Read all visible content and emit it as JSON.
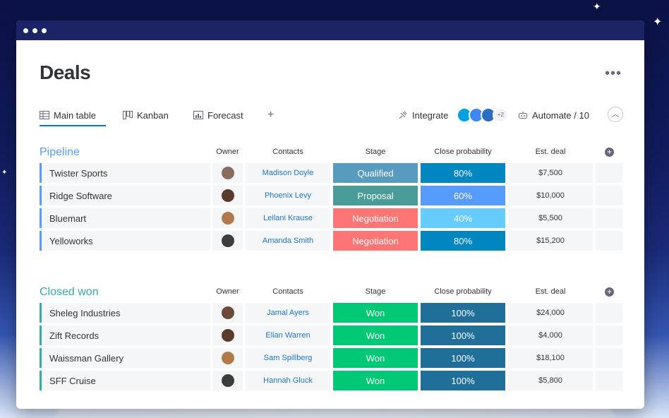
{
  "colors": {
    "accent": "#0073ea",
    "pipeline": "#579bfc",
    "closed": "#37a9a4"
  },
  "title": "Deals",
  "tabs": [
    {
      "label": "Main table",
      "icon": "table-icon"
    },
    {
      "label": "Kanban",
      "icon": "kanban-icon"
    },
    {
      "label": "Forecast",
      "icon": "chart-icon"
    }
  ],
  "integrate_label": "Integrate",
  "integrate_more": "+2",
  "automate_label": "Automate / 10",
  "columns": {
    "owner": "Owner",
    "contacts": "Contacts",
    "stage": "Stage",
    "prob": "Close probability",
    "deal": "Est. deal"
  },
  "groups": [
    {
      "title": "Pipeline",
      "color": "#579bfc",
      "rows": [
        {
          "name": "Twister Sports",
          "contact": "Madison Doyle",
          "stage": "Qualified",
          "stage_color": "#579bbe",
          "prob": "80%",
          "prob_color": "#0086c0",
          "deal": "$7,500",
          "avatar_color": "#8a6d5c"
        },
        {
          "name": "Ridge Software",
          "contact": "Phoenix Levy",
          "stage": "Proposal",
          "stage_color": "#4a9c99",
          "prob": "60%",
          "prob_color": "#579bfc",
          "deal": "$10,000",
          "avatar_color": "#5a3b2e"
        },
        {
          "name": "Bluemart",
          "contact": "Leilani Krause",
          "stage": "Negotiation",
          "stage_color": "#ff7575",
          "prob": "40%",
          "prob_color": "#66ccff",
          "deal": "$5,500",
          "avatar_color": "#b07a4a"
        },
        {
          "name": "Yelloworks",
          "contact": "Amanda Smith",
          "stage": "Negotiation",
          "stage_color": "#ff7575",
          "prob": "80%",
          "prob_color": "#0086c0",
          "deal": "$15,200",
          "avatar_color": "#3c3c3c"
        }
      ]
    },
    {
      "title": "Closed won",
      "color": "#37a9a4",
      "rows": [
        {
          "name": "Sheleg Industries",
          "contact": "Jamal Ayers",
          "stage": "Won",
          "stage_color": "#00c875",
          "prob": "100%",
          "prob_color": "#1f6f9a",
          "deal": "$24,000",
          "avatar_color": "#6b4a3a"
        },
        {
          "name": "Zift Records",
          "contact": "Elian Warren",
          "stage": "Won",
          "stage_color": "#00c875",
          "prob": "100%",
          "prob_color": "#1f6f9a",
          "deal": "$4,000",
          "avatar_color": "#5a3b2e"
        },
        {
          "name": "Waissman Gallery",
          "contact": "Sam Spillberg",
          "stage": "Won",
          "stage_color": "#00c875",
          "prob": "100%",
          "prob_color": "#1f6f9a",
          "deal": "$18,100",
          "avatar_color": "#b07a4a"
        },
        {
          "name": "SFF Cruise",
          "contact": "Hannah Gluck",
          "stage": "Won",
          "stage_color": "#00c875",
          "prob": "100%",
          "prob_color": "#1f6f9a",
          "deal": "$5,800",
          "avatar_color": "#3c3c3c"
        }
      ]
    }
  ]
}
